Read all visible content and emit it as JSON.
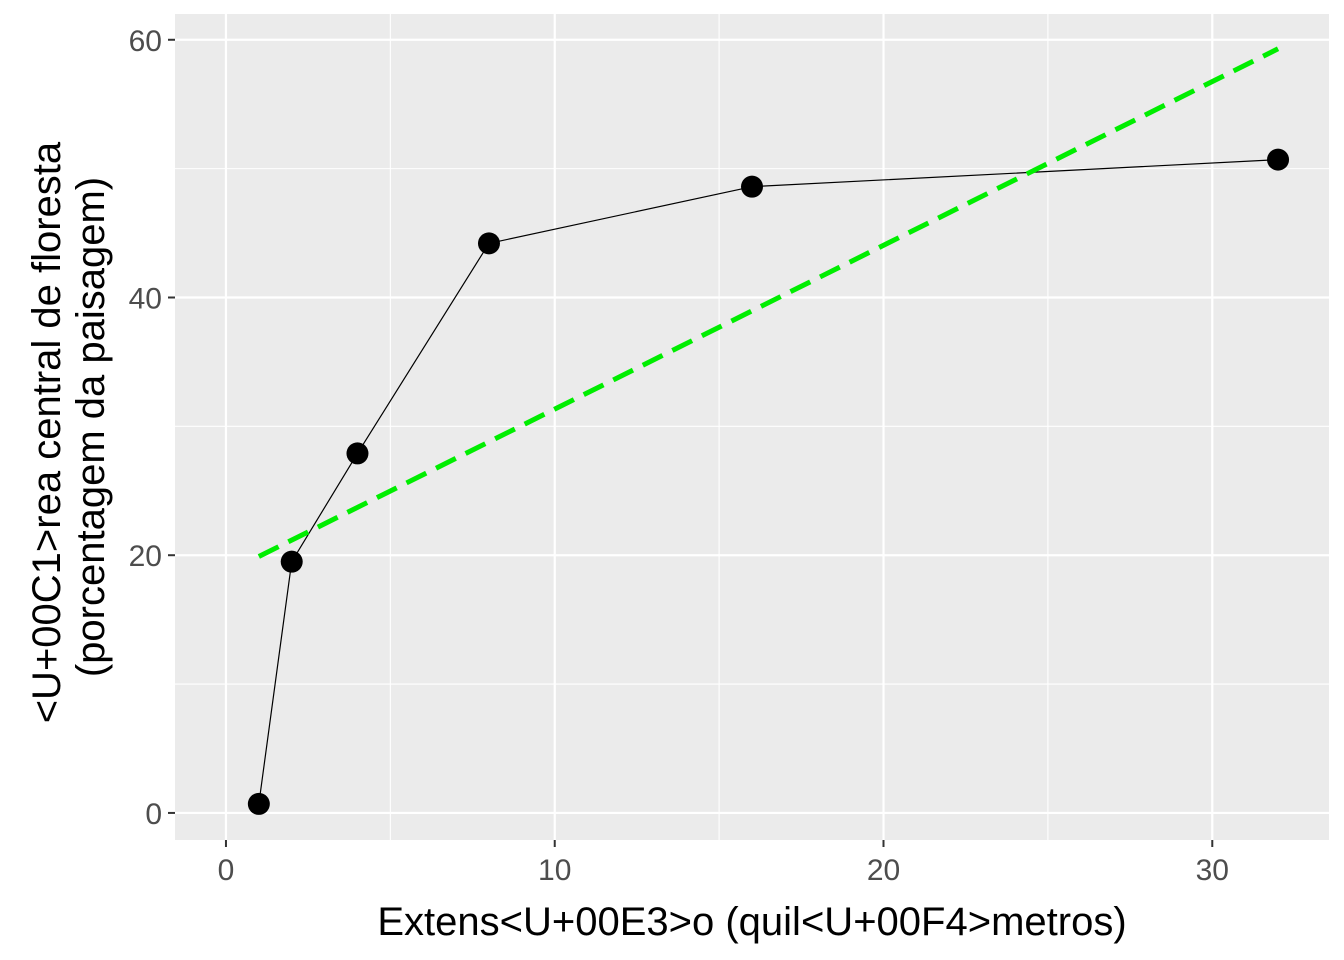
{
  "chart_data": {
    "type": "line",
    "title": "",
    "xlabel": "Extens<U+00E3>o (quil<U+00F4>metros)",
    "ylabel": [
      "<U+00C1>rea central de floresta",
      "(porcentagem da paisagem)"
    ],
    "xlim": [
      -1.55,
      33.55
    ],
    "ylim": [
      -2.1,
      62.0
    ],
    "x_ticks": [
      0,
      10,
      20,
      30
    ],
    "y_ticks": [
      0,
      20,
      40,
      60
    ],
    "x_minor": [
      5,
      15,
      25
    ],
    "y_minor": [
      10,
      30,
      50
    ],
    "grid": true,
    "legend": "none",
    "series": [
      {
        "style": "points-connected",
        "color": "#000000",
        "x": [
          1,
          2,
          4,
          8,
          16,
          32
        ],
        "y": [
          0.7,
          19.5,
          27.9,
          44.2,
          48.6,
          50.7
        ]
      },
      {
        "style": "dashed-line",
        "color": "#00ee00",
        "x": [
          1,
          32
        ],
        "y": [
          19.9,
          59.3
        ]
      }
    ]
  }
}
